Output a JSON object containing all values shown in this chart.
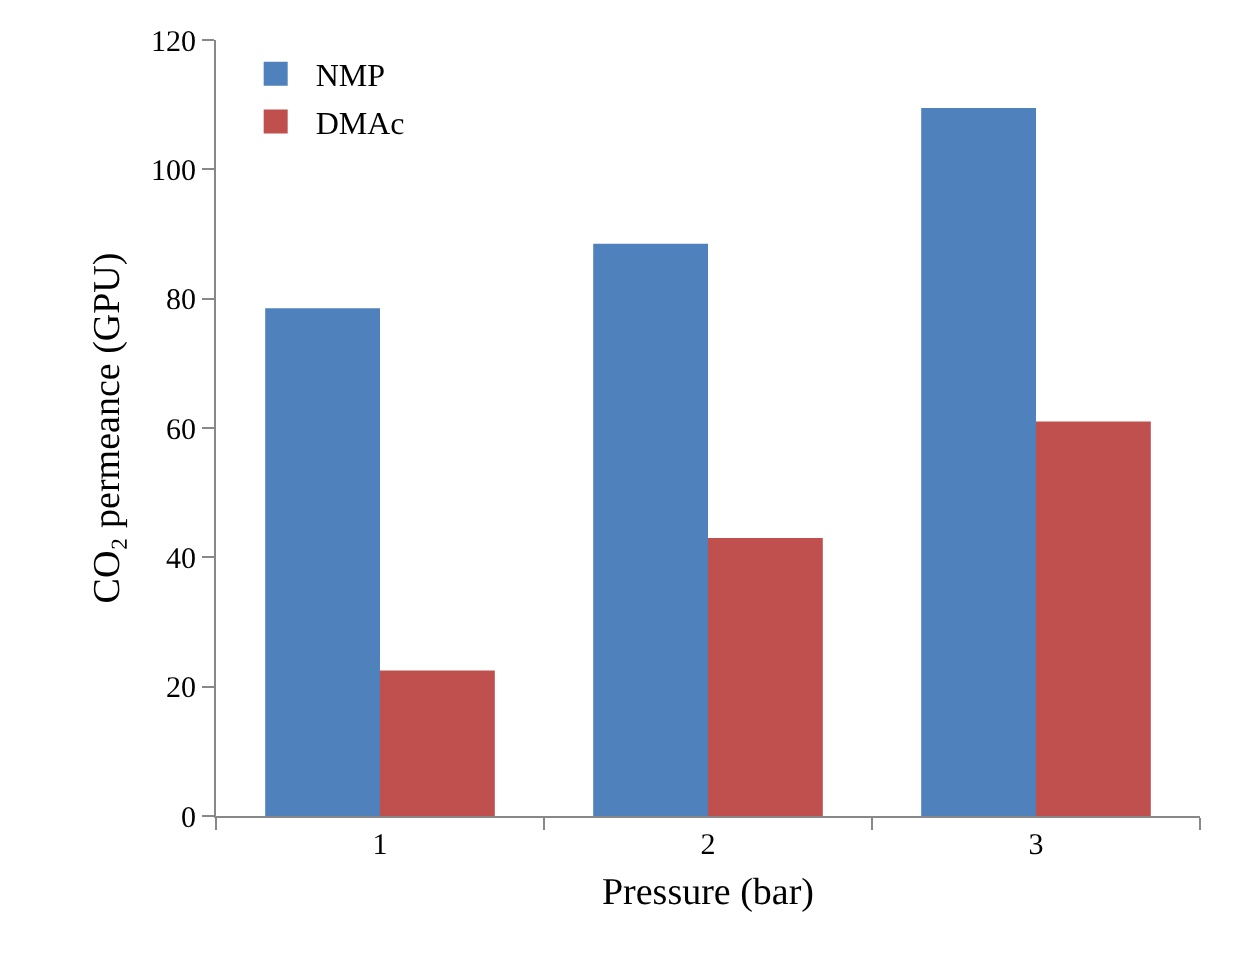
{
  "chart_data": {
    "type": "bar",
    "xlabel": "Pressure (bar)",
    "ylabel": "CO₂ permeance (GPU)",
    "categories": [
      "1",
      "2",
      "3"
    ],
    "series": [
      {
        "name": "NMP",
        "color": "#4f81bd",
        "values": [
          78.5,
          88.5,
          109.5
        ]
      },
      {
        "name": "DMAc",
        "color": "#c0504d",
        "values": [
          22.5,
          43,
          61
        ]
      }
    ],
    "ylim": [
      0,
      120
    ],
    "yticks": [
      0,
      20,
      40,
      60,
      80,
      100,
      120
    ],
    "grid": false,
    "legend": "top left"
  }
}
